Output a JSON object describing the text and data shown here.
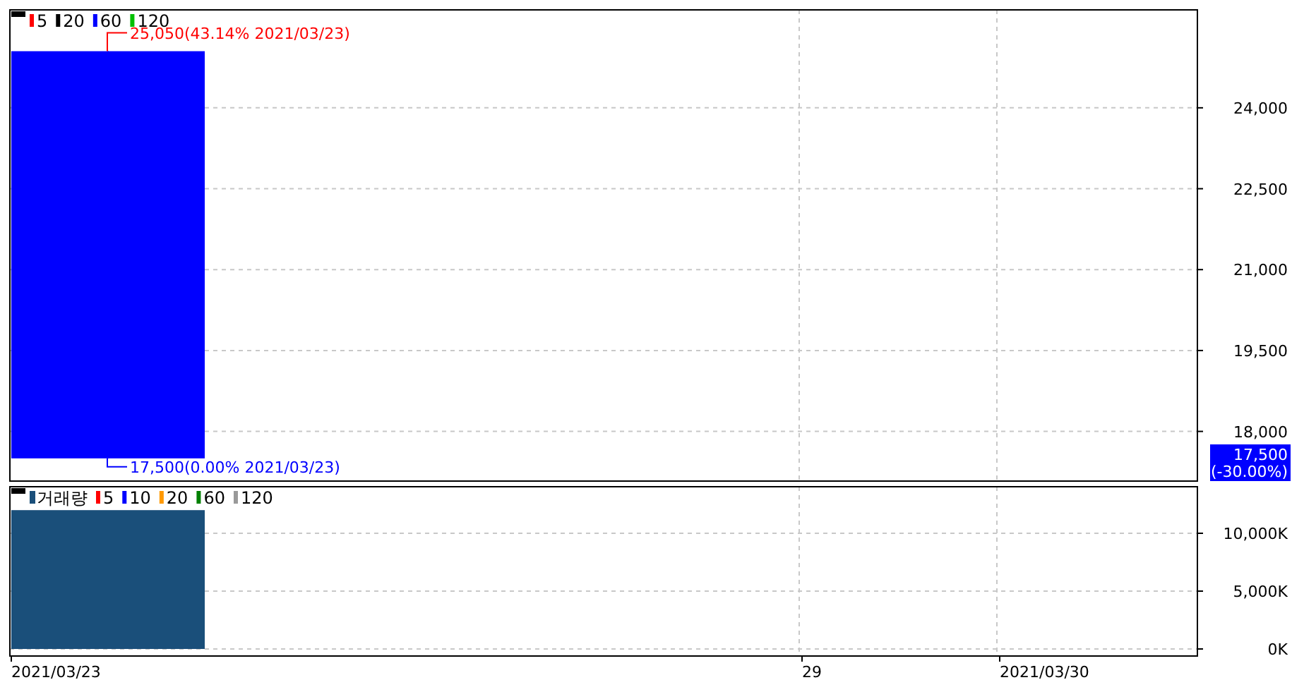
{
  "chart_data": [
    {
      "type": "candlestick",
      "categories": [
        "2021/03/23",
        null,
        null,
        null,
        "29",
        "2021/03/30"
      ],
      "ohlc": [
        [
          25050,
          25050,
          17500,
          17500
        ],
        null,
        null,
        null,
        null,
        null
      ],
      "colors": [
        "#0000ff",
        null,
        null,
        null,
        null,
        null
      ],
      "series": [
        {
          "name": "5",
          "type": "line",
          "color": "#ff0000",
          "values": [
            null,
            null,
            null,
            null,
            null,
            null
          ]
        },
        {
          "name": "20",
          "type": "line",
          "color": "#000000",
          "values": [
            null,
            null,
            null,
            null,
            null,
            null
          ]
        },
        {
          "name": "60",
          "type": "line",
          "color": "#0000ff",
          "values": [
            null,
            null,
            null,
            null,
            null,
            null
          ]
        },
        {
          "name": "120",
          "type": "line",
          "color": "#00c000",
          "values": [
            null,
            null,
            null,
            null,
            null,
            null
          ]
        }
      ],
      "ylim": [
        17079,
        25816
      ],
      "yticks": [
        {
          "value": 18000,
          "label": "18,000"
        },
        {
          "value": 19500,
          "label": "19,500"
        },
        {
          "value": 21000,
          "label": "21,000"
        },
        {
          "value": 22500,
          "label": "22,500"
        },
        {
          "value": 24000,
          "label": "24,000"
        }
      ],
      "grid": true,
      "legend": "top left",
      "tick_labels": "y",
      "annotations": [
        "25,050(43.14% 2021/03/23)",
        "17,500(0.00% 2021/03/23)",
        "17,500",
        "(-30.00%)"
      ]
    },
    {
      "type": "bar",
      "categories": [
        "2021/03/23",
        null,
        null,
        null,
        "29",
        "2021/03/30"
      ],
      "series": [
        {
          "name": "거래량",
          "color": "#1a4f7a",
          "values": [
            12000,
            null,
            null,
            null,
            null,
            null
          ]
        },
        {
          "name": "5",
          "type": "line",
          "color": "#ff0000",
          "values": [
            null,
            null,
            null,
            null,
            null,
            null
          ]
        },
        {
          "name": "10",
          "type": "line",
          "color": "#0000ff",
          "values": [
            null,
            null,
            null,
            null,
            null,
            null
          ]
        },
        {
          "name": "20",
          "type": "line",
          "color": "#ff9900",
          "values": [
            null,
            null,
            null,
            null,
            null,
            null
          ]
        },
        {
          "name": "60",
          "type": "line",
          "color": "#008000",
          "values": [
            null,
            null,
            null,
            null,
            null,
            null
          ]
        },
        {
          "name": "120",
          "type": "line",
          "color": "#999999",
          "values": [
            null,
            null,
            null,
            null,
            null,
            null
          ]
        }
      ],
      "ylim": [
        -610,
        14024
      ],
      "yticks": [
        {
          "value": 0,
          "label": "0K"
        },
        {
          "value": 5000,
          "label": "5,000K"
        },
        {
          "value": 10000,
          "label": "10,000K"
        }
      ],
      "grid": true,
      "legend": "top left"
    }
  ]
}
